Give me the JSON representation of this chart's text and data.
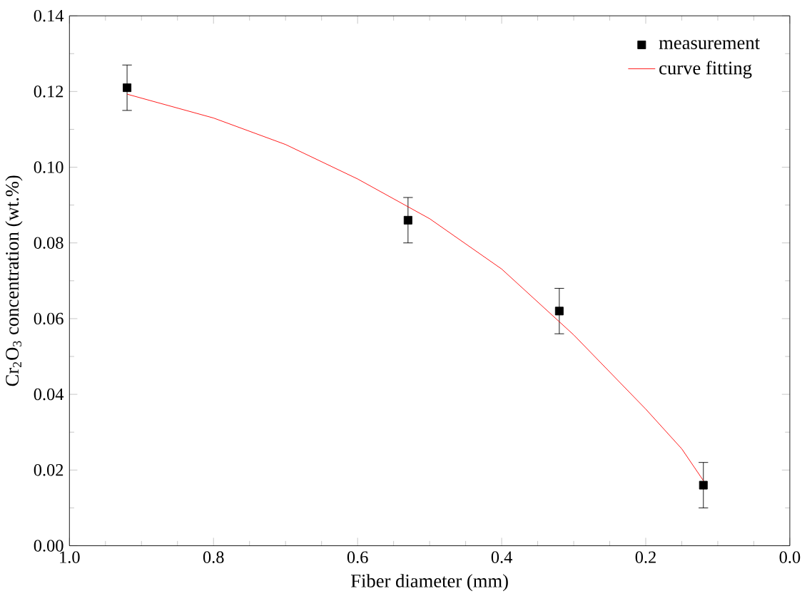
{
  "chart_data": {
    "type": "scatter",
    "xlabel": "Fiber diameter (mm)",
    "ylabel": "Cr$_{2}$O$_{3}$ concentration (wt.%)",
    "xlim": [
      1.0,
      0.0
    ],
    "xticks": [
      {
        "value": 1.0,
        "label": "1.0"
      },
      {
        "value": 0.8,
        "label": "0.8"
      },
      {
        "value": 0.6,
        "label": "0.6"
      },
      {
        "value": 0.4,
        "label": "0.4"
      },
      {
        "value": 0.2,
        "label": "0.2"
      },
      {
        "value": 0.0,
        "label": "0.0"
      }
    ],
    "ylim": [
      0,
      0.14
    ],
    "yticks": [
      {
        "value": 0,
        "label": "0.00"
      },
      {
        "value": 0.02,
        "label": "0.02"
      },
      {
        "value": 0.04,
        "label": "0.04"
      },
      {
        "value": 0.06,
        "label": "0.06"
      },
      {
        "value": 0.08,
        "label": "0.08"
      },
      {
        "value": 0.1,
        "label": "0.10"
      },
      {
        "value": 0.12,
        "label": "0.12"
      },
      {
        "value": 0.14,
        "label": "0.14"
      }
    ],
    "legend": "top right",
    "grid": false,
    "series": [
      {
        "name": "measurement",
        "marker": "square",
        "color": "#000000",
        "x": [
          0.92,
          0.53,
          0.32,
          0.12
        ],
        "values": [
          0.121,
          0.086,
          0.062,
          0.016
        ],
        "errors": [
          0.006,
          0.006,
          0.006,
          0.006
        ]
      },
      {
        "name": "curve fitting",
        "type": "line",
        "marker": "none",
        "line_style": "solid",
        "color": "#ff0000",
        "x": [
          0.92,
          0.8,
          0.7,
          0.6,
          0.5,
          0.4,
          0.3,
          0.2,
          0.15,
          0.12
        ],
        "values": [
          0.1193,
          0.113,
          0.106,
          0.0969,
          0.0864,
          0.0731,
          0.0557,
          0.0361,
          0.0256,
          0.0172
        ]
      }
    ]
  }
}
